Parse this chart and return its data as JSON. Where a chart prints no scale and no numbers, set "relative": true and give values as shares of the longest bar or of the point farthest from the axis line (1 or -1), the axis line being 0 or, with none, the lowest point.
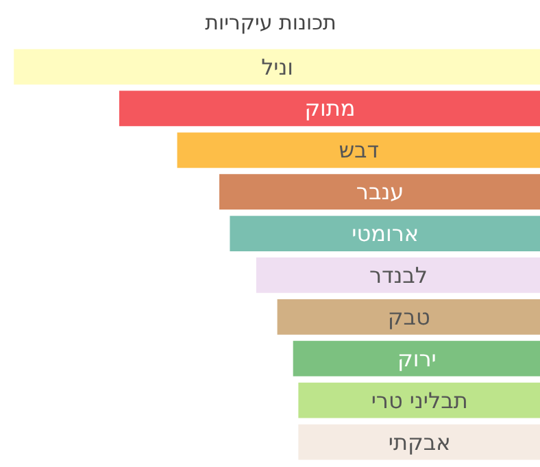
{
  "chart_data": {
    "type": "bar",
    "orientation": "horizontal",
    "relative": true,
    "title": "תכונות עיקריות",
    "categories": [
      "וניל",
      "מתוק",
      "דבש",
      "ענבר",
      "ארומטי",
      "לבנדר",
      "טבק",
      "ירוק",
      "תבליני טרי",
      "אבקתי"
    ],
    "values": [
      1,
      0.8,
      0.69,
      0.61,
      0.59,
      0.54,
      0.5,
      0.47,
      0.46,
      0.46
    ],
    "colors": [
      "#fffcc0",
      "#f4575d",
      "#fdbe48",
      "#d3875e",
      "#7abfb0",
      "#efdff2",
      "#d1b084",
      "#7cc180",
      "#bde48b",
      "#f5ebe3"
    ]
  }
}
